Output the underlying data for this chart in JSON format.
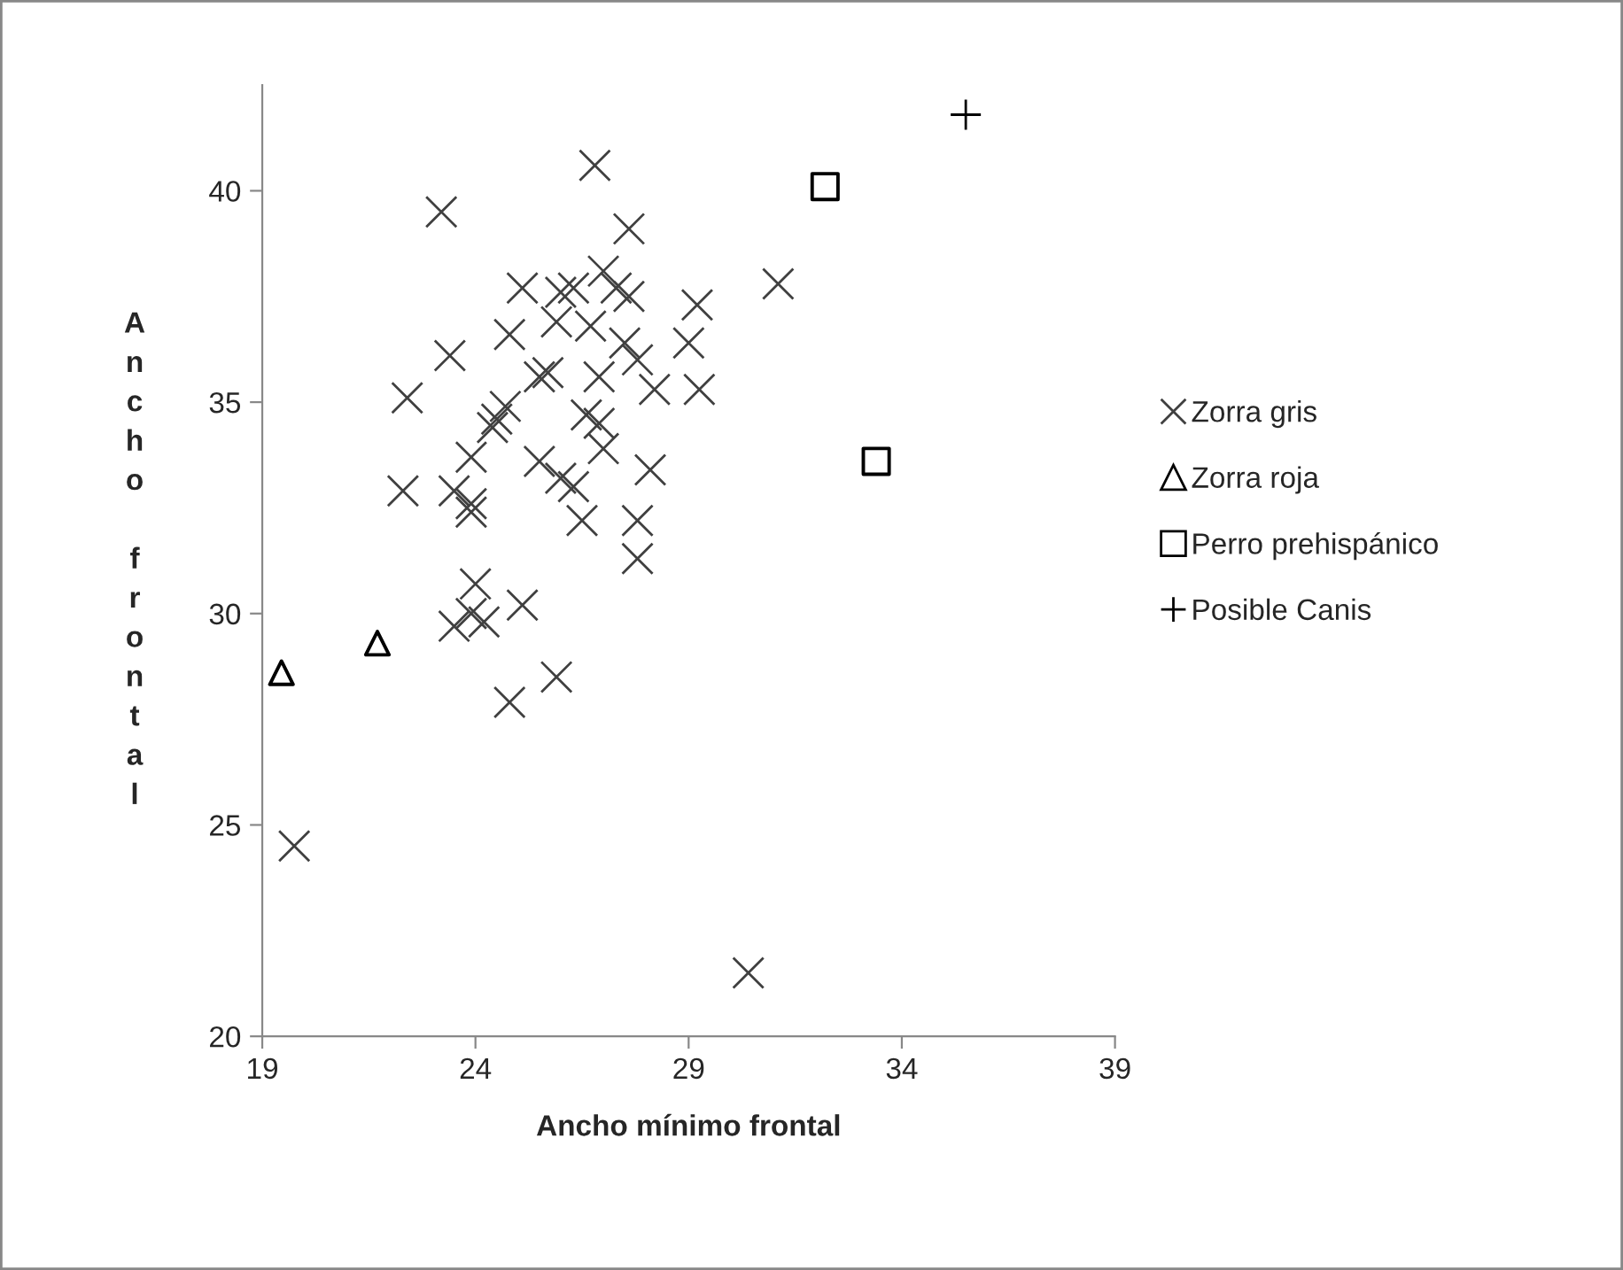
{
  "chart_data": {
    "type": "scatter",
    "xlabel": "Ancho mínimo frontal",
    "ylabel": "Ancho frontal",
    "xlim": [
      19,
      39
    ],
    "xticks": [
      19,
      24,
      29,
      34,
      39
    ],
    "ylim": [
      20,
      42.5
    ],
    "yticks": [
      20,
      25,
      30,
      35,
      40
    ],
    "grid": false,
    "legend": "right",
    "series": [
      {
        "name": "Zorra gris",
        "color": "#404040",
        "marker": "cross",
        "x": [
          26.8,
          23.2,
          27.6,
          25.1,
          26.0,
          26.3,
          27.0,
          27.3,
          27.6,
          25.9,
          26.7,
          24.8,
          29.0,
          27.5,
          23.4,
          25.5,
          25.7,
          26.9,
          28.2,
          27.8,
          22.4,
          24.7,
          24.5,
          24.4,
          26.6,
          26.9,
          27.0,
          23.9,
          25.5,
          26.0,
          26.3,
          28.1,
          22.3,
          23.5,
          23.9,
          23.9,
          26.5,
          27.8,
          27.8,
          24.0,
          25.1,
          23.5,
          23.9,
          24.2,
          25.9,
          24.8,
          19.75,
          30.4,
          31.1,
          29.2,
          29.25
        ],
        "values": [
          40.6,
          39.5,
          39.1,
          37.7,
          37.6,
          37.7,
          38.1,
          37.7,
          37.5,
          36.9,
          36.8,
          36.6,
          36.4,
          36.4,
          36.1,
          35.6,
          35.7,
          35.6,
          35.3,
          36.0,
          35.1,
          34.9,
          34.6,
          34.4,
          34.7,
          34.5,
          33.9,
          33.7,
          33.6,
          33.2,
          33.0,
          33.4,
          32.9,
          32.9,
          32.6,
          32.4,
          32.2,
          32.2,
          31.3,
          30.7,
          30.2,
          29.7,
          30.0,
          29.8,
          28.5,
          27.9,
          24.5,
          21.5,
          37.8,
          37.3,
          35.3
        ]
      },
      {
        "name": "Zorra roja",
        "color": "#000000",
        "marker": "triangle",
        "x": [
          19.45,
          21.7
        ],
        "values": [
          28.6,
          29.3
        ]
      },
      {
        "name": "Perro prehispánico",
        "color": "#000000",
        "marker": "square",
        "x": [
          32.2,
          33.4
        ],
        "values": [
          40.1,
          33.6
        ]
      },
      {
        "name": "Posible Canis",
        "color": "#000000",
        "marker": "plus",
        "x": [
          35.5
        ],
        "values": [
          41.8
        ]
      }
    ]
  }
}
